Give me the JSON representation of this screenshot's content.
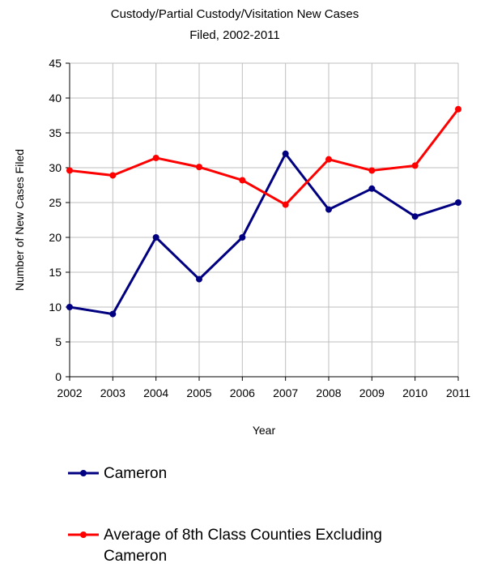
{
  "chart_data": {
    "type": "line",
    "title_lines": [
      "Custody/Partial Custody/Visitation New  Cases",
      "Filed, 2002-2011"
    ],
    "xlabel": "Year",
    "ylabel": "Number of New Cases Filed",
    "categories": [
      "2002",
      "2003",
      "2004",
      "2005",
      "2006",
      "2007",
      "2008",
      "2009",
      "2010",
      "2011"
    ],
    "ylim": [
      0,
      45
    ],
    "yticks": [
      0,
      5,
      10,
      15,
      20,
      25,
      30,
      35,
      40,
      45
    ],
    "grid": true,
    "legend_position": "bottom",
    "series": [
      {
        "name": "Cameron",
        "color": "#000080",
        "values": [
          10,
          9,
          20,
          14,
          20,
          32,
          24,
          27,
          23,
          25
        ]
      },
      {
        "name": "Average of 8th Class Counties Excluding Cameron",
        "name_lines": [
          "Average of 8th Class Counties Excluding",
          "Cameron"
        ],
        "color": "#ff0000",
        "values": [
          29.6,
          28.9,
          31.4,
          30.1,
          28.2,
          24.7,
          31.2,
          29.6,
          30.3,
          38.4
        ]
      }
    ]
  }
}
